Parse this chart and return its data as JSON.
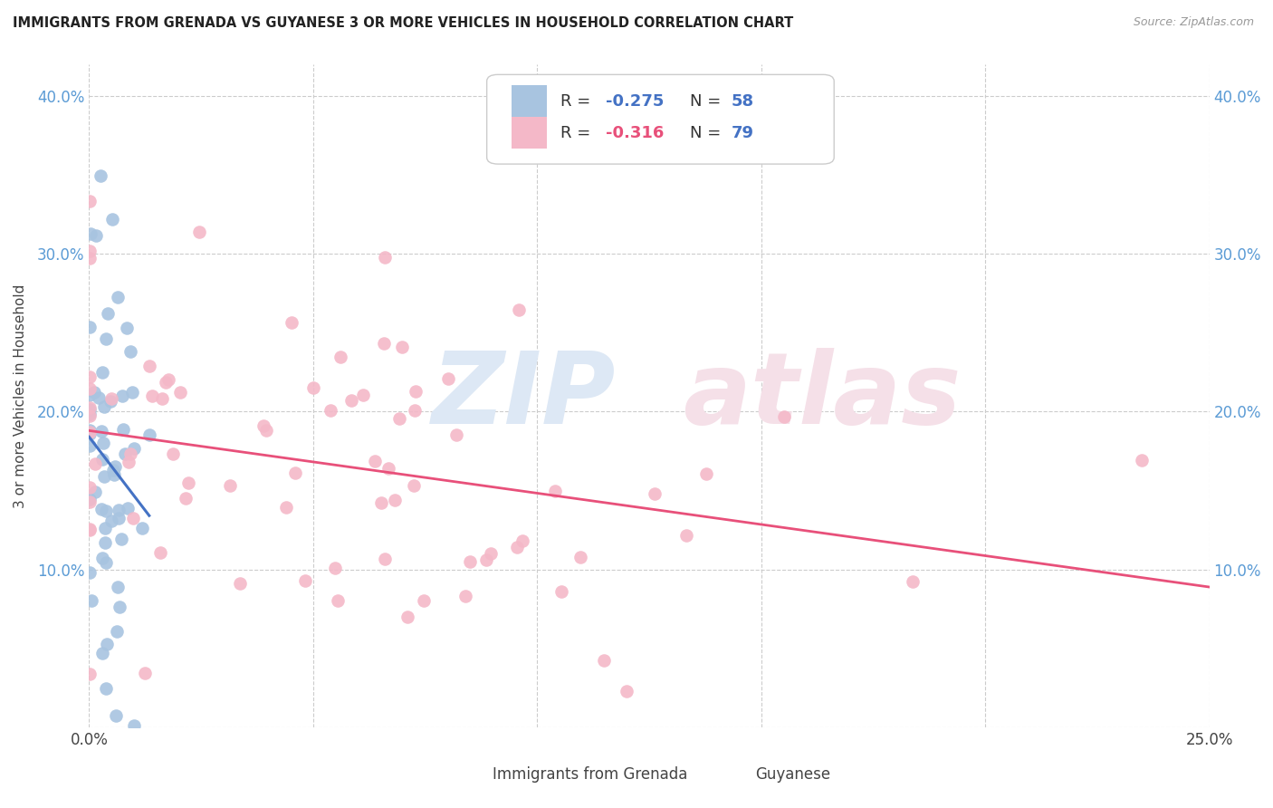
{
  "title": "IMMIGRANTS FROM GRENADA VS GUYANESE 3 OR MORE VEHICLES IN HOUSEHOLD CORRELATION CHART",
  "source": "Source: ZipAtlas.com",
  "ylabel": "3 or more Vehicles in Household",
  "xlim": [
    0.0,
    0.25
  ],
  "ylim": [
    0.0,
    0.42
  ],
  "xtick_vals": [
    0.0,
    0.05,
    0.1,
    0.15,
    0.2,
    0.25
  ],
  "xticklabels": [
    "0.0%",
    "",
    "",
    "",
    "",
    "25.0%"
  ],
  "ytick_vals": [
    0.0,
    0.1,
    0.2,
    0.3,
    0.4
  ],
  "yticklabels": [
    "",
    "10.0%",
    "20.0%",
    "30.0%",
    "40.0%"
  ],
  "legend_labels": [
    "Immigrants from Grenada",
    "Guyanese"
  ],
  "R_grenada": -0.275,
  "N_grenada": 58,
  "R_guyanese": -0.316,
  "N_guyanese": 79,
  "color_grenada": "#a8c4e0",
  "color_guyanese": "#f4b8c8",
  "line_color_grenada": "#4472c4",
  "line_color_guyanese": "#e8507a",
  "tick_color": "#5b9bd5",
  "background_color": "#ffffff",
  "grenada_seed": 42,
  "guyanese_seed": 17
}
